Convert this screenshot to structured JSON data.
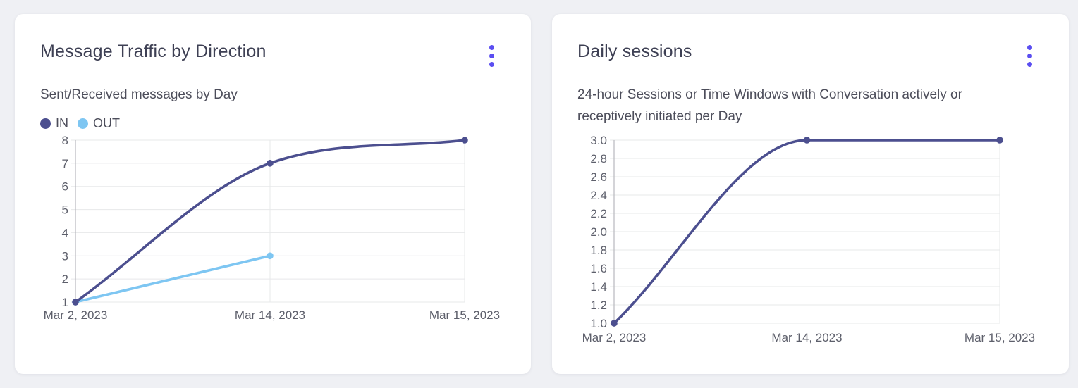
{
  "page": {
    "background": "#eff0f4",
    "accent_color": "#5b4ef1"
  },
  "cards": [
    {
      "title": "Message Traffic by Direction",
      "subtitle": "Sent/Received messages by Day",
      "menu_icon": "kebab-menu-icon",
      "accent_color": "#5b4ef1",
      "legend": [
        {
          "label": "IN",
          "color": "#4c4f8f"
        },
        {
          "label": "OUT",
          "color": "#7ec6f2"
        }
      ],
      "chart_data": {
        "type": "line",
        "title": "Message Traffic by Direction",
        "x": [
          "Mar 2, 2023",
          "Mar 14, 2023",
          "Mar 15, 2023"
        ],
        "series": [
          {
            "name": "IN",
            "color": "#4c4f8f",
            "values": [
              1,
              7,
              8
            ],
            "smooth": true
          },
          {
            "name": "OUT",
            "color": "#7ec6f2",
            "values": [
              1,
              3,
              null
            ],
            "smooth": false
          }
        ],
        "ylim": [
          1,
          8
        ],
        "y_ticks": [
          "1",
          "2",
          "3",
          "4",
          "5",
          "6",
          "7",
          "8"
        ],
        "grid": true,
        "legend_position": "top-left"
      }
    },
    {
      "title": "Daily sessions",
      "subtitle": "24-hour Sessions or Time Windows with Conversation actively or receptively initiated per Day",
      "menu_icon": "kebab-menu-icon",
      "accent_color": "#5b4ef1",
      "legend": [],
      "chart_data": {
        "type": "line",
        "title": "Daily sessions",
        "x": [
          "Mar 2, 2023",
          "Mar 14, 2023",
          "Mar 15, 2023"
        ],
        "series": [
          {
            "name": "Daily sessions",
            "color": "#4c4f8f",
            "values": [
              1.0,
              3.0,
              3.0
            ],
            "smooth": true
          }
        ],
        "ylim": [
          1.0,
          3.0
        ],
        "y_ticks": [
          "1.0",
          "1.2",
          "1.4",
          "1.6",
          "1.8",
          "2.0",
          "2.2",
          "2.4",
          "2.6",
          "2.8",
          "3.0"
        ],
        "grid": true,
        "legend_position": "none"
      }
    }
  ]
}
